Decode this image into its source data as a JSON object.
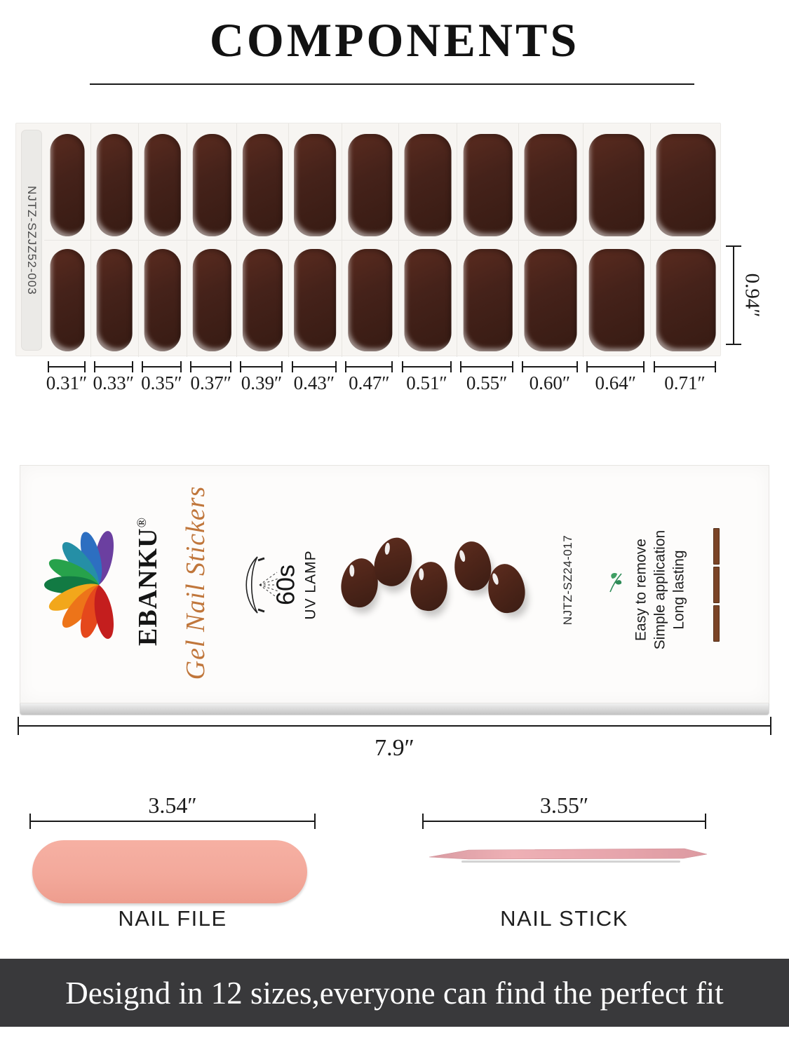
{
  "title": "COMPONENTS",
  "sheet": {
    "label": "NJTZ-SZJZ52-003",
    "height_label": "0.94″",
    "sizes": [
      "0.31″",
      "0.33″",
      "0.35″",
      "0.37″",
      "0.39″",
      "0.43″",
      "0.47″",
      "0.51″",
      "0.55″",
      "0.60″",
      "0.64″",
      "0.71″"
    ]
  },
  "package": {
    "brand": "EBANKU",
    "reg_mark": "®",
    "product_name": "Gel Nail Stickers",
    "lamp_time": "60s",
    "lamp_label": "UV LAMP",
    "model": "NJTZ-SZ24-017",
    "features": [
      "Easy to remove",
      "Simple application",
      "Long lasting"
    ],
    "width_label": "7.9″",
    "logo_colors": [
      "#6B3FA0",
      "#2D6FC1",
      "#258FA6",
      "#27A24B",
      "#127A43",
      "#F2A71B",
      "#ED7419",
      "#E5481C",
      "#C41E1E"
    ]
  },
  "nail_file": {
    "size_label": "3.54″",
    "name": "NAIL FILE"
  },
  "nail_stick": {
    "size_label": "3.55″",
    "name": "NAIL STICK"
  },
  "banner": {
    "text": "Designd in 12 sizes,everyone can find the perfect fit"
  },
  "colors": {
    "sheet_nail": "#45221a",
    "package_nail": "#4e2519",
    "swatch_brown": "#7b4426",
    "file_pink": "#f3a99b",
    "stick_pink": "#e9a9ae",
    "banner_bg": "#39393b",
    "script_orange": "#c0763b"
  },
  "icons": {
    "logo": "rainbow-flower",
    "lamp": "uv-lamp",
    "leaf": "leaf-sprout"
  }
}
